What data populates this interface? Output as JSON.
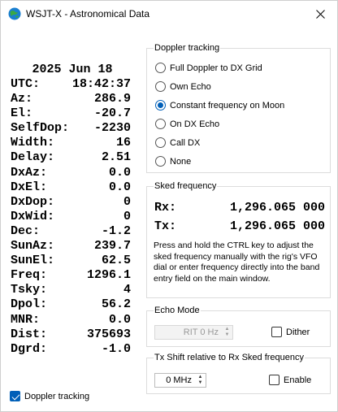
{
  "window": {
    "title": "WSJT-X - Astronomical Data"
  },
  "astro": {
    "date": "2025 Jun 18",
    "rows": [
      {
        "k": "UTC:",
        "v": "18:42:37"
      },
      {
        "k": "Az:",
        "v": "286.9"
      },
      {
        "k": "El:",
        "v": "-20.7"
      },
      {
        "k": "SelfDop:",
        "v": "-2230"
      },
      {
        "k": "Width:",
        "v": "16"
      },
      {
        "k": "Delay:",
        "v": "2.51"
      },
      {
        "k": "DxAz:",
        "v": "0.0"
      },
      {
        "k": "DxEl:",
        "v": "0.0"
      },
      {
        "k": "DxDop:",
        "v": "0"
      },
      {
        "k": "DxWid:",
        "v": "0"
      },
      {
        "k": "Dec:",
        "v": "-1.2"
      },
      {
        "k": "SunAz:",
        "v": "239.7"
      },
      {
        "k": "SunEl:",
        "v": "62.5"
      },
      {
        "k": "Freq:",
        "v": "1296.1"
      },
      {
        "k": "Tsky:",
        "v": "4"
      },
      {
        "k": "Dpol:",
        "v": "56.2"
      },
      {
        "k": "MNR:",
        "v": "0.0"
      },
      {
        "k": "Dist:",
        "v": "375693"
      },
      {
        "k": "Dgrd:",
        "v": "-1.0"
      }
    ]
  },
  "doppler": {
    "title": "Doppler tracking",
    "options": [
      {
        "label": "Full Doppler to DX Grid",
        "selected": false
      },
      {
        "label": "Own Echo",
        "selected": false
      },
      {
        "label": "Constant frequency on Moon",
        "selected": true
      },
      {
        "label": "On DX Echo",
        "selected": false
      },
      {
        "label": "Call DX",
        "selected": false
      },
      {
        "label": "None",
        "selected": false
      }
    ]
  },
  "sked": {
    "title": "Sked frequency",
    "rx_label": "Rx:",
    "rx_value": "1,296.065 000",
    "tx_label": "Tx:",
    "tx_value": "1,296.065 000",
    "help": "Press and hold the CTRL key to adjust the sked frequency manually with the rig's VFO dial or enter frequency directly into the band entry field on the main window."
  },
  "echo": {
    "title": "Echo Mode",
    "rit_value": "RIT 0 Hz",
    "dither_label": "Dither",
    "dither_checked": false
  },
  "txshift": {
    "title": "Tx Shift relative to Rx Sked frequency",
    "shift_value": "0 MHz",
    "enable_label": "Enable",
    "enable_checked": false
  },
  "footer": {
    "doppler_tracking_label": "Doppler tracking",
    "doppler_tracking_checked": true
  },
  "colors": {
    "accent": "#005fb8",
    "border": "#dcdcdc"
  }
}
